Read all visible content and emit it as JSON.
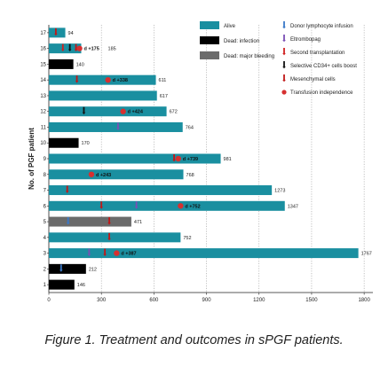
{
  "chart_data": {
    "type": "bar",
    "orientation": "horizontal",
    "ylabel": "No. of PGF patient",
    "xlim": [
      0,
      1850
    ],
    "xticks": [
      0,
      300,
      600,
      900,
      1200,
      1500,
      1800
    ],
    "colors": {
      "Alive": "#1a8fa0",
      "Dead: infection": "#000000",
      "Dead: major bleeding": "#6b6b6b",
      "Donor lymphocyte infusion": "#3a78c8",
      "Eltrombopag": "#7a4fb5",
      "Second transplantation": "#d02020",
      "Selective CD34+ cells boost": "#111111",
      "Mesenchymal cells": "#c01818",
      "Transfusion independence": "#d63030"
    },
    "legend": {
      "position": "top-right",
      "outcomes": [
        "Alive",
        "Dead: infection",
        "Dead: major bleeding"
      ],
      "treatments": [
        "Donor lymphocyte infusion",
        "Eltrombopag",
        "Second transplantation",
        "Selective CD34+ cells boost",
        "Mesenchymal cells",
        "Transfusion independence"
      ]
    },
    "patients": [
      {
        "id": "1",
        "value": 146,
        "outcome": "Dead: infection",
        "events": []
      },
      {
        "id": "2",
        "value": 212,
        "outcome": "Dead: infection",
        "events": [
          {
            "type": "Donor lymphocyte infusion",
            "day": 70
          }
        ]
      },
      {
        "id": "3",
        "value": 1767,
        "outcome": "Alive",
        "events": [
          {
            "type": "Eltrombopag",
            "day": 230
          },
          {
            "type": "Mesenchymal cells",
            "day": 320
          },
          {
            "type": "Transfusion independence",
            "day": 387,
            "label": "d +387"
          }
        ]
      },
      {
        "id": "4",
        "value": 752,
        "outcome": "Alive",
        "events": [
          {
            "type": "Mesenchymal cells",
            "day": 345
          }
        ]
      },
      {
        "id": "5",
        "value": 471,
        "outcome": "Dead: major bleeding",
        "events": [
          {
            "type": "Donor lymphocyte infusion",
            "day": 110
          },
          {
            "type": "Mesenchymal cells",
            "day": 345
          }
        ]
      },
      {
        "id": "6",
        "value": 1347,
        "outcome": "Alive",
        "events": [
          {
            "type": "Mesenchymal cells",
            "day": 300
          },
          {
            "type": "Eltrombopag",
            "day": 500
          },
          {
            "type": "Transfusion independence",
            "day": 752,
            "label": "d +752"
          }
        ]
      },
      {
        "id": "7",
        "value": 1273,
        "outcome": "Alive",
        "events": [
          {
            "type": "Mesenchymal cells",
            "day": 105
          }
        ]
      },
      {
        "id": "8",
        "value": 768,
        "outcome": "Alive",
        "events": [
          {
            "type": "Transfusion independence",
            "day": 243,
            "label": "d +243"
          }
        ]
      },
      {
        "id": "9",
        "value": 981,
        "outcome": "Alive",
        "events": [
          {
            "type": "Mesenchymal cells",
            "day": 715
          },
          {
            "type": "Transfusion independence",
            "day": 739,
            "label": "d +739"
          }
        ]
      },
      {
        "id": "10",
        "value": 170,
        "outcome": "Dead: infection",
        "events": []
      },
      {
        "id": "11",
        "value": 764,
        "outcome": "Alive",
        "events": [
          {
            "type": "Eltrombopag",
            "day": 395
          }
        ]
      },
      {
        "id": "12",
        "value": 672,
        "outcome": "Alive",
        "events": [
          {
            "type": "Selective CD34+ cells boost",
            "day": 200
          },
          {
            "type": "Transfusion independence",
            "day": 424,
            "label": "d +424"
          }
        ]
      },
      {
        "id": "13",
        "value": 617,
        "outcome": "Alive",
        "events": []
      },
      {
        "id": "14",
        "value": 611,
        "outcome": "Alive",
        "events": [
          {
            "type": "Mesenchymal cells",
            "day": 160
          },
          {
            "type": "Transfusion independence",
            "day": 338,
            "label": "d +338"
          }
        ]
      },
      {
        "id": "15",
        "value": 140,
        "outcome": "Dead: infection",
        "events": []
      },
      {
        "id": "16",
        "value": 185,
        "outcome": "Alive",
        "events": [
          {
            "type": "Second transplantation",
            "day": 80
          },
          {
            "type": "Selective CD34+ cells boost",
            "day": 120
          },
          {
            "type": "Mesenchymal cells",
            "day": 155
          },
          {
            "type": "Transfusion independence",
            "day": 175,
            "label": "d +175"
          }
        ]
      },
      {
        "id": "17",
        "value": 94,
        "outcome": "Alive",
        "events": [
          {
            "type": "Mesenchymal cells",
            "day": 40
          }
        ]
      }
    ]
  },
  "caption": "Figure 1. Treatment and outcomes in sPGF patients."
}
